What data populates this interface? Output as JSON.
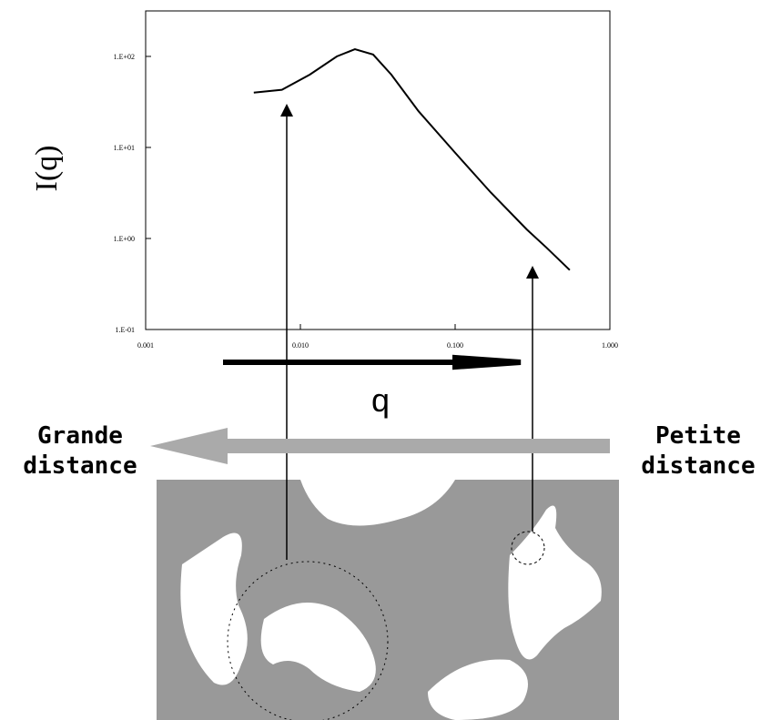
{
  "chart_data": {
    "type": "line",
    "y_label": "I(q)",
    "x": [
      0.005,
      0.0076,
      0.0115,
      0.0172,
      0.0225,
      0.0295,
      0.0387,
      0.058,
      0.099,
      0.17,
      0.29,
      0.39,
      0.55
    ],
    "values": [
      40,
      43,
      63,
      100,
      120,
      105,
      63,
      25,
      8.9,
      3.2,
      1.26,
      0.79,
      0.45
    ],
    "color": "#000000",
    "xscale": "log",
    "yscale": "log",
    "xlim": [
      0.001,
      1
    ],
    "ylim": [
      0.1,
      316
    ],
    "xticks": [
      {
        "value": 0.001,
        "label": "0.001"
      },
      {
        "value": 0.01,
        "label": "0.010"
      },
      {
        "value": 0.1,
        "label": "0.100"
      },
      {
        "value": 1,
        "label": "1.000"
      }
    ],
    "yticks": [
      {
        "value": 0.1,
        "label": "1.E-01"
      },
      {
        "value": 1,
        "label": "1.E+00"
      },
      {
        "value": 10,
        "label": "1.E+01"
      },
      {
        "value": 100,
        "label": "1.E+02"
      }
    ]
  },
  "labels": {
    "q": "q",
    "left": [
      "Grande",
      "distance"
    ],
    "right": [
      "Petite",
      "distance"
    ]
  }
}
